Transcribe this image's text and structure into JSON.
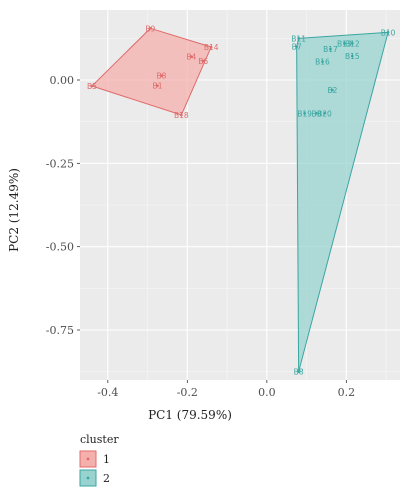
{
  "chart_data": {
    "type": "scatter",
    "title": "",
    "xlabel": "PC1 (79.59%)",
    "ylabel": "PC2 (12.49%)",
    "xlim": [
      -0.47,
      0.335
    ],
    "ylim": [
      -0.9,
      0.21
    ],
    "xticks": [
      -0.4,
      -0.2,
      0.0,
      0.2
    ],
    "xtick_labels": [
      "-0.4",
      "-0.2",
      "0.0",
      "0.2"
    ],
    "yticks": [
      0.0,
      -0.25,
      -0.5,
      -0.75
    ],
    "ytick_labels": [
      "0.00",
      "-0.25",
      "-0.50",
      "-0.75"
    ],
    "grid": true,
    "background": "#ebebeb",
    "legend": {
      "title": "cluster",
      "placement": "bottom-left",
      "entries": [
        "1",
        "2"
      ]
    },
    "series": [
      {
        "name": "1",
        "color": "#e06b6b",
        "fill": "#f4b0ad",
        "points": [
          {
            "label": "B9",
            "x": -0.293,
            "y": 0.155
          },
          {
            "label": "B14",
            "x": -0.14,
            "y": 0.099
          },
          {
            "label": "B4",
            "x": -0.19,
            "y": 0.07
          },
          {
            "label": "B6",
            "x": -0.16,
            "y": 0.057
          },
          {
            "label": "B8",
            "x": -0.265,
            "y": 0.013
          },
          {
            "label": "B1",
            "x": -0.275,
            "y": -0.017
          },
          {
            "label": "B5",
            "x": -0.44,
            "y": -0.018
          },
          {
            "label": "B18",
            "x": -0.215,
            "y": -0.105
          }
        ],
        "hull": [
          "B9",
          "B14",
          "B18",
          "B5"
        ]
      },
      {
        "name": "2",
        "color": "#3aa6a1",
        "fill": "#98d3d0",
        "points": [
          {
            "label": "B10",
            "x": 0.305,
            "y": 0.143
          },
          {
            "label": "B11",
            "x": 0.08,
            "y": 0.125
          },
          {
            "label": "B7",
            "x": 0.075,
            "y": 0.1
          },
          {
            "label": "B13",
            "x": 0.195,
            "y": 0.11
          },
          {
            "label": "B12",
            "x": 0.215,
            "y": 0.11
          },
          {
            "label": "B17",
            "x": 0.16,
            "y": 0.093
          },
          {
            "label": "B15",
            "x": 0.215,
            "y": 0.072
          },
          {
            "label": "B16",
            "x": 0.14,
            "y": 0.055
          },
          {
            "label": "B2",
            "x": 0.165,
            "y": -0.03
          },
          {
            "label": "B19",
            "x": 0.095,
            "y": -0.1
          },
          {
            "label": "B3",
            "x": 0.125,
            "y": -0.1
          },
          {
            "label": "B20",
            "x": 0.145,
            "y": -0.1
          },
          {
            "label": "B8",
            "x": 0.08,
            "y": -0.875
          }
        ],
        "hull": [
          "B11",
          "B10",
          "B8",
          "B7"
        ]
      }
    ]
  }
}
